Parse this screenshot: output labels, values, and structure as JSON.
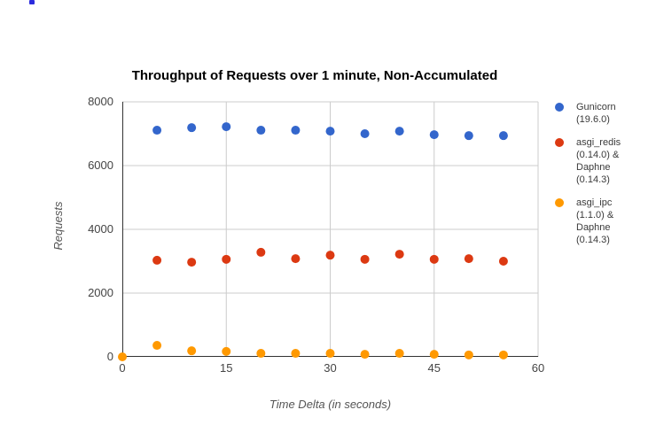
{
  "page": {
    "background": "#ffffff",
    "artifact_color": "#2b2bdd"
  },
  "chart_data": {
    "type": "scatter",
    "title": "Throughput of Requests over 1 minute, Non-Accumulated",
    "xlabel": "Time Delta (in seconds)",
    "ylabel": "Requests",
    "xlim": [
      0,
      60
    ],
    "ylim": [
      0,
      8000
    ],
    "x_ticks": [
      0,
      15,
      30,
      45,
      60
    ],
    "y_ticks": [
      0,
      2000,
      4000,
      6000,
      8000
    ],
    "grid": true,
    "legend_position": "right",
    "colors": {
      "grid": "#cccccc",
      "axis": "#333333",
      "tick_text": "#444444",
      "axis_title_text": "#555555",
      "title_text": "#000000",
      "legend_text": "#3a3a3a"
    },
    "series": [
      {
        "id": "gunicorn",
        "name": "Gunicorn (19.6.0)",
        "legend_lines": [
          "Gunicorn",
          "(19.6.0)"
        ],
        "color": "#3366CC",
        "x": [
          5,
          10,
          15,
          20,
          25,
          30,
          35,
          40,
          45,
          50,
          55
        ],
        "y": [
          7110,
          7190,
          7220,
          7110,
          7110,
          7080,
          7000,
          7080,
          6970,
          6940,
          6940
        ]
      },
      {
        "id": "asgi-redis",
        "name": "asgi_redis (0.14.0) & Daphne (0.14.3)",
        "legend_lines": [
          "asgi_redis",
          "(0.14.0) &",
          "Daphne",
          "(0.14.3)"
        ],
        "color": "#DC3912",
        "x": [
          5,
          10,
          15,
          20,
          25,
          30,
          35,
          40,
          45,
          50,
          55
        ],
        "y": [
          3030,
          2970,
          3060,
          3280,
          3080,
          3190,
          3060,
          3220,
          3060,
          3080,
          3000
        ]
      },
      {
        "id": "asgi-ipc",
        "name": "asgi_ipc (1.1.0) & Daphne (0.14.3)",
        "legend_lines": [
          "asgi_ipc",
          "(1.1.0) &",
          "Daphne",
          "(0.14.3)"
        ],
        "color": "#FF9900",
        "x": [
          0,
          5,
          10,
          15,
          20,
          25,
          30,
          35,
          40,
          45,
          50,
          55
        ],
        "y": [
          0,
          360,
          190,
          170,
          110,
          110,
          110,
          80,
          110,
          80,
          60,
          60
        ]
      }
    ]
  }
}
